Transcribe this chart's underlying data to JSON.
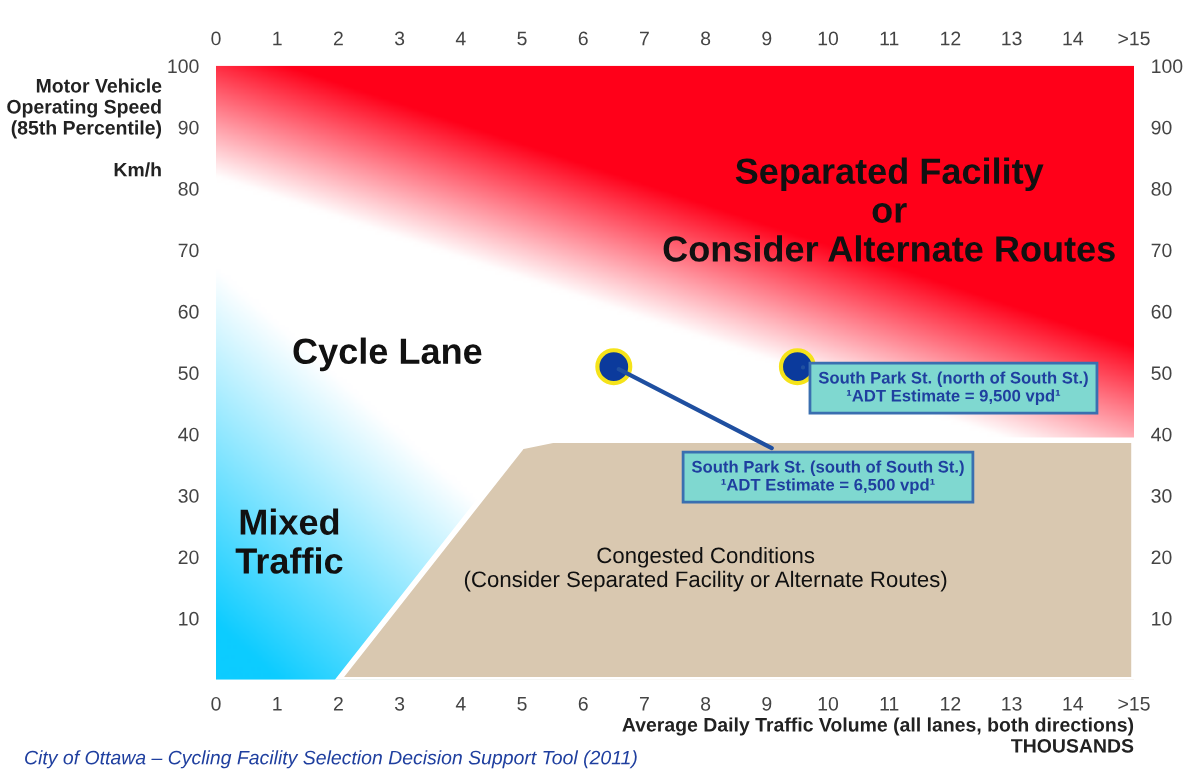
{
  "chart_data": {
    "type": "scatter",
    "xlabel": "Average Daily Traffic Volume (all lanes, both directions)\nTHOUSANDS",
    "ylabel": "Motor Vehicle\nOperating Speed\n(85th Percentile)\n\nKm/h",
    "x": [
      6.5,
      9.5
    ],
    "series": [
      {
        "color": "#0b3a9c",
        "values": [
          51,
          51
        ]
      }
    ],
    "marker": "circle",
    "xlim": [
      0,
      15
    ],
    "xticks": [
      0,
      1,
      2,
      3,
      4,
      5,
      6,
      7,
      8,
      9,
      10,
      11,
      12,
      13,
      14,
      {
        "value": 15,
        "label": ">15"
      }
    ],
    "x2lim": [
      0,
      15
    ],
    "x2ticks": [
      0,
      1,
      2,
      3,
      4,
      5,
      6,
      7,
      8,
      9,
      10,
      11,
      12,
      13,
      14,
      {
        "value": 15,
        "label": ">15"
      }
    ],
    "ylim": [
      0,
      100
    ],
    "yticks": [
      10,
      20,
      30,
      40,
      50,
      60,
      70,
      80,
      90,
      100
    ],
    "y2lim": [
      0,
      100
    ],
    "y2ticks": [
      10,
      20,
      30,
      40,
      50,
      60,
      70,
      80,
      90,
      100
    ],
    "grid": false,
    "annotations": [
      {
        "text": "South Park St. (south of South St.)\n¹ADT Estimate = 6,500 vpd¹",
        "x": 6.5,
        "y": 51
      },
      {
        "text": "South Park St. (north of South St.)\n¹ADT Estimate = 9,500 vpd¹",
        "x": 9.5,
        "y": 51
      },
      "Separated Facility\nor\nConsider Alternate Routes",
      "Cycle Lane",
      "Mixed\nTraffic",
      "Congested Conditions\n(Consider Separated Facility or Alternate Routes)",
      "City of Ottawa – Cycling Facility Selection Decision Support Tool (2011)"
    ]
  }
}
